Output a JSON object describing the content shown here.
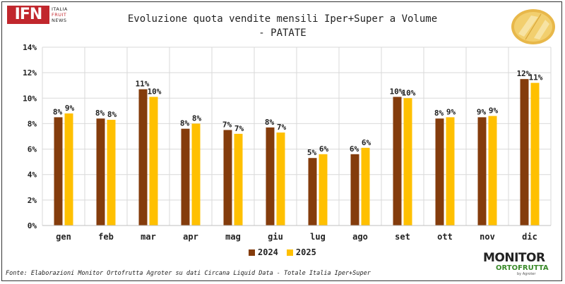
{
  "logo": {
    "mark": "IFN",
    "lines": [
      "ITALIA",
      "FRUIT",
      "NEWS"
    ]
  },
  "monitor_logo": {
    "line1": "MONITOR",
    "line2": "ORTOFRUTTA",
    "line3": "by Agroter"
  },
  "colors": {
    "series_2024": "#843c0c",
    "series_2025": "#ffc000",
    "grid": "#d9d9d9",
    "text": "#222222"
  },
  "source": "Fonte: Elaborazioni Monitor Ortofrutta Agroter su dati Circana Liquid Data - Totale Italia Iper+Super",
  "chart_data": {
    "type": "bar",
    "title": [
      "Evoluzione quota vendite mensili Iper+Super a Volume",
      "- PATATE"
    ],
    "xlabel": "",
    "ylabel": "",
    "ylim": [
      0,
      14
    ],
    "yticks": [
      0,
      2,
      4,
      6,
      8,
      10,
      12,
      14
    ],
    "ytick_labels": [
      "0%",
      "2%",
      "4%",
      "6%",
      "8%",
      "10%",
      "12%",
      "14%"
    ],
    "grid": true,
    "legend_position": "bottom",
    "categories": [
      "gen",
      "feb",
      "mar",
      "apr",
      "mag",
      "giu",
      "lug",
      "ago",
      "set",
      "ott",
      "nov",
      "dic"
    ],
    "series": [
      {
        "name": "2024",
        "values": [
          8.5,
          8.4,
          10.7,
          7.6,
          7.5,
          7.7,
          5.3,
          5.6,
          10.1,
          8.4,
          8.5,
          11.5
        ],
        "labels": [
          "8%",
          "8%",
          "11%",
          "8%",
          "7%",
          "8%",
          "5%",
          "6%",
          "10%",
          "8%",
          "9%",
          "12%"
        ]
      },
      {
        "name": "2025",
        "values": [
          8.8,
          8.3,
          10.1,
          8.0,
          7.2,
          7.3,
          5.6,
          6.1,
          10.0,
          8.5,
          8.6,
          11.2
        ],
        "labels": [
          "9%",
          "8%",
          "10%",
          "8%",
          "7%",
          "7%",
          "6%",
          "6%",
          "10%",
          "9%",
          "9%",
          "11%"
        ]
      }
    ]
  }
}
